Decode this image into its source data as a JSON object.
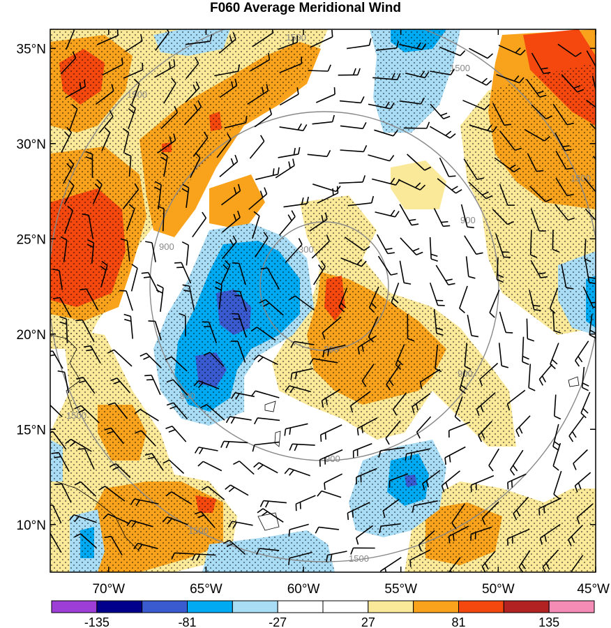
{
  "title": "F060 Average Meridional Wind",
  "map": {
    "lon_range": [
      -73,
      -45
    ],
    "lat_range": [
      7.5,
      36
    ],
    "lat_ticks": [
      {
        "value": 35,
        "label": "35°N"
      },
      {
        "value": 30,
        "label": "30°N"
      },
      {
        "value": 25,
        "label": "25°N"
      },
      {
        "value": 20,
        "label": "20°N"
      },
      {
        "value": 15,
        "label": "15°N"
      },
      {
        "value": 10,
        "label": "10°N"
      }
    ],
    "lon_ticks": [
      {
        "value": -70,
        "label": "70°W"
      },
      {
        "value": -65,
        "label": "65°W"
      },
      {
        "value": -60,
        "label": "60°W"
      },
      {
        "value": -55,
        "label": "55°W"
      },
      {
        "value": -50,
        "label": "50°W"
      },
      {
        "value": -45,
        "label": "45°W"
      }
    ],
    "range_ring_labels": [
      "300",
      "300",
      "900",
      "900",
      "900",
      "900",
      "900",
      "1500",
      "1500",
      "1500",
      "1500",
      "1500",
      "1500",
      "1500"
    ]
  },
  "colorbar": {
    "colors": [
      "#9d3fd6",
      "#00008c",
      "#3a5ad0",
      "#00aaf2",
      "#a9dcf5",
      "#ffffff",
      "#ffffff",
      "#fbe99a",
      "#f9a21b",
      "#f5480e",
      "#b22222",
      "#f48cb5"
    ],
    "labels": [
      "-135",
      "-81",
      "-27",
      "27",
      "81",
      "135"
    ]
  }
}
